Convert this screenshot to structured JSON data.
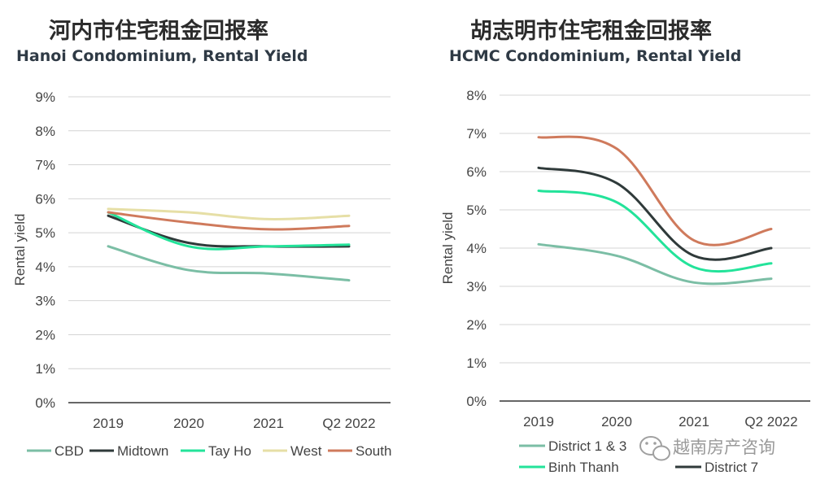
{
  "chart_data": [
    {
      "type": "line",
      "title": "河内市住宅租金回报率",
      "subtitle": "Hanoi Condominium, Rental Yield",
      "xlabel": "",
      "ylabel": "Rental yield",
      "categories": [
        "2019",
        "2020",
        "2021",
        "Q2 2022"
      ],
      "ylim": [
        0,
        9
      ],
      "yticks": [
        "0%",
        "1%",
        "2%",
        "3%",
        "4%",
        "5%",
        "6%",
        "7%",
        "8%",
        "9%"
      ],
      "grid": true,
      "legend": "bottom",
      "series": [
        {
          "name": "CBD",
          "color": "#7bbea5",
          "values": [
            4.6,
            3.9,
            3.8,
            3.6
          ]
        },
        {
          "name": "Midtown",
          "color": "#2f3a3a",
          "values": [
            5.5,
            4.7,
            4.6,
            4.6
          ]
        },
        {
          "name": "Tay Ho",
          "color": "#23e39a",
          "values": [
            5.6,
            4.6,
            4.6,
            4.65
          ]
        },
        {
          "name": "West",
          "color": "#e6dfa6",
          "values": [
            5.7,
            5.6,
            5.4,
            5.5
          ]
        },
        {
          "name": "South",
          "color": "#cf7a5c",
          "values": [
            5.6,
            5.3,
            5.1,
            5.2
          ]
        }
      ]
    },
    {
      "type": "line",
      "title": "胡志明市住宅租金回报率",
      "subtitle": "HCMC Condominium, Rental Yield",
      "xlabel": "",
      "ylabel": "Rental yield",
      "categories": [
        "2019",
        "2020",
        "2021",
        "Q2 2022"
      ],
      "ylim": [
        0,
        8
      ],
      "yticks": [
        "0%",
        "1%",
        "2%",
        "3%",
        "4%",
        "5%",
        "6%",
        "7%",
        "8%"
      ],
      "grid": true,
      "legend": "bottom",
      "series": [
        {
          "name": "District 1 & 3",
          "color": "#7bbea5",
          "values": [
            4.1,
            3.8,
            3.1,
            3.2
          ]
        },
        {
          "name": "Binh Thanh",
          "color": "#23e39a",
          "values": [
            5.5,
            5.2,
            3.5,
            3.6
          ]
        },
        {
          "name": "District 7",
          "color": "#2f3a3a",
          "values": [
            6.1,
            5.7,
            3.8,
            4.0
          ]
        },
        {
          "name": "",
          "color": "#cf7a5c",
          "values": [
            6.9,
            6.6,
            4.2,
            4.5
          ]
        }
      ],
      "legend_entries": [
        "District 1 & 3",
        "Binh Thanh",
        "District 7"
      ]
    }
  ],
  "watermark": {
    "text": "越南房产咨询",
    "icon": "wechat-icon"
  }
}
